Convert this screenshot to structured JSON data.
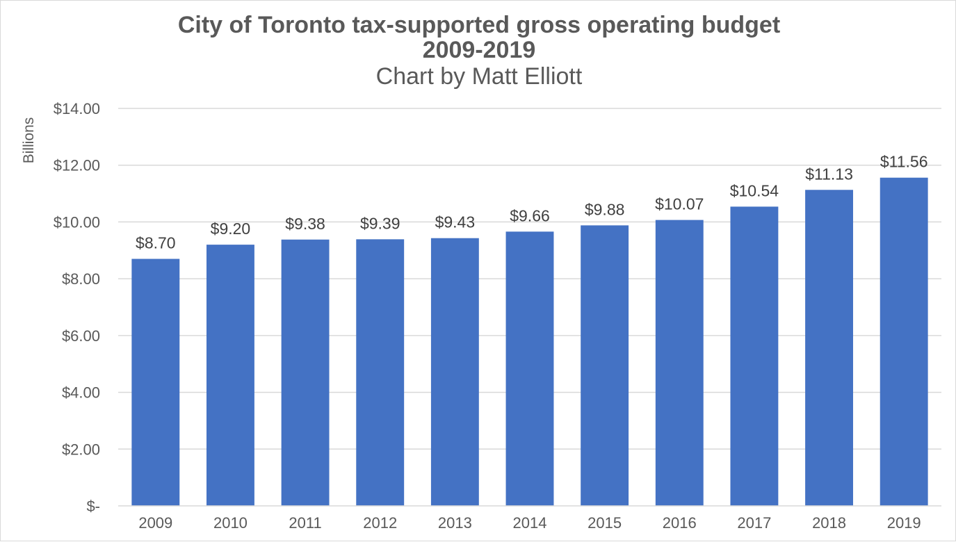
{
  "chart_data": {
    "type": "bar",
    "title": "City of Toronto tax-supported gross operating budget",
    "title_line2": "2009-2019",
    "subtitle": "Chart by Matt Elliott",
    "xlabel": "",
    "ylabel": "Billions",
    "categories": [
      "2009",
      "2010",
      "2011",
      "2012",
      "2013",
      "2014",
      "2015",
      "2016",
      "2017",
      "2018",
      "2019"
    ],
    "values": [
      8.7,
      9.2,
      9.38,
      9.39,
      9.43,
      9.66,
      9.88,
      10.07,
      10.54,
      11.13,
      11.56
    ],
    "data_labels": [
      "$8.70",
      "$9.20",
      "$9.38",
      "$9.39",
      "$9.43",
      "$9.66",
      "$9.88",
      "$10.07",
      "$10.54",
      "$11.13",
      "$11.56"
    ],
    "ylim": [
      0,
      14
    ],
    "yticks": [
      0,
      2,
      4,
      6,
      8,
      10,
      12,
      14
    ],
    "ytick_labels": [
      "$-",
      "$2.00",
      "$4.00",
      "$6.00",
      "$8.00",
      "$10.00",
      "$12.00",
      "$14.00"
    ],
    "grid": true,
    "legend": "none",
    "colors": {
      "bar": "#4472c4",
      "text": "#595959",
      "data_label": "#404040",
      "grid": "#d9d9d9"
    }
  }
}
